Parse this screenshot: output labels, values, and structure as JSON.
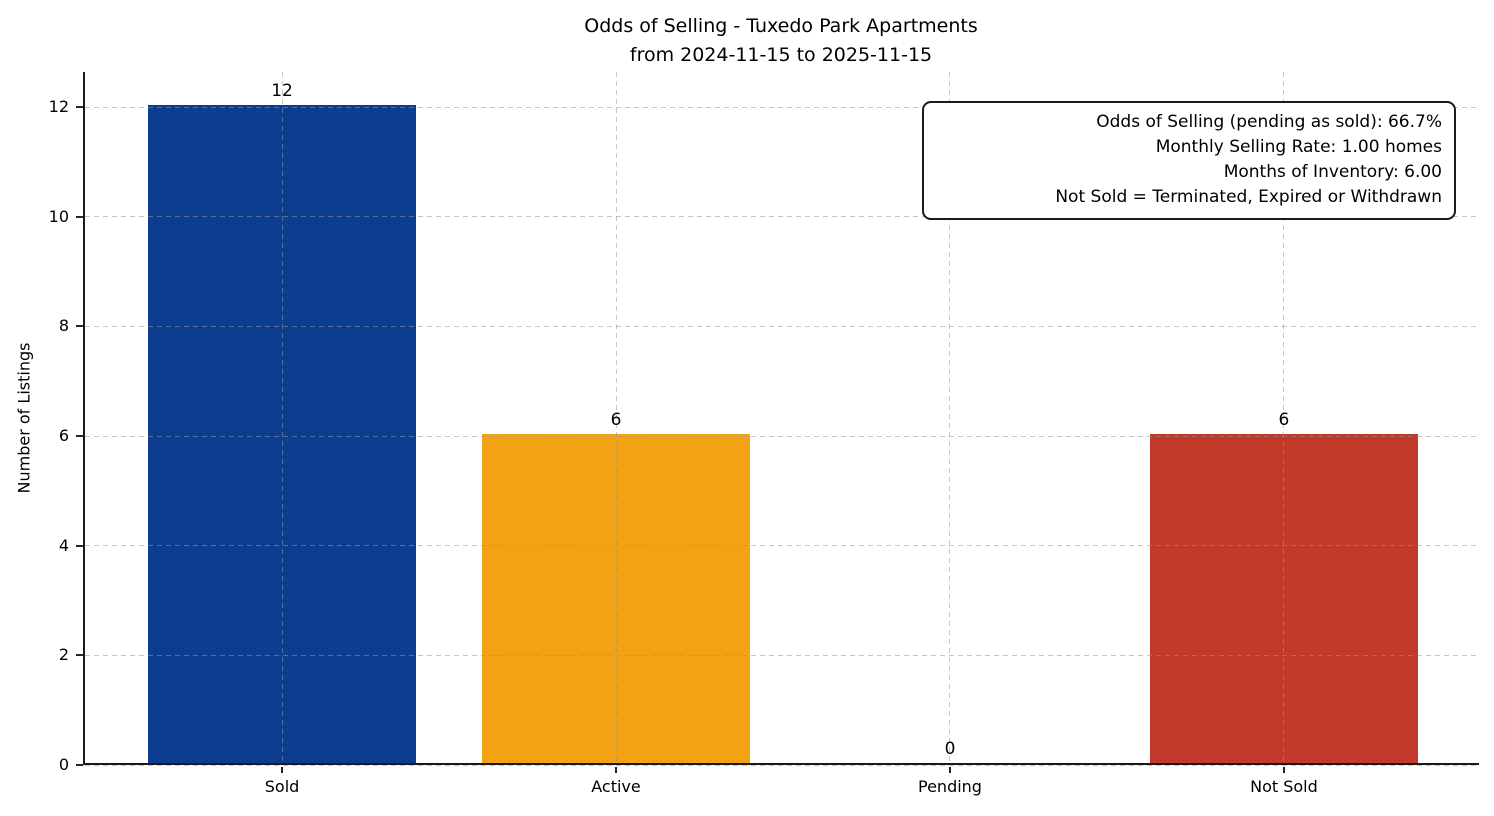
{
  "chart_data": {
    "type": "bar",
    "title": "Odds of Selling - Tuxedo Park Apartments",
    "subtitle": "from 2024-11-15 to 2025-11-15",
    "categories": [
      "Sold",
      "Active",
      "Pending",
      "Not Sold"
    ],
    "values": [
      12,
      6,
      0,
      6
    ],
    "bar_colors": [
      "#0d3d91",
      "#f2a213",
      null,
      "#c0392b"
    ],
    "value_labels": [
      "12",
      "6",
      "0",
      "6"
    ],
    "xlabel": "",
    "ylabel": "Number of Listings",
    "ylim": [
      0,
      12.64
    ],
    "yticks": [
      0,
      2,
      4,
      6,
      8,
      10,
      12
    ],
    "grid": "dashed, both axes, drawn over bars",
    "legend": "none",
    "annotation": {
      "position": "top-right",
      "lines": [
        "Odds of Selling (pending as sold): 66.7%",
        "Monthly Selling Rate: 1.00 homes",
        "Months of Inventory: 6.00",
        "Not Sold = Terminated, Expired or Withdrawn"
      ]
    }
  }
}
